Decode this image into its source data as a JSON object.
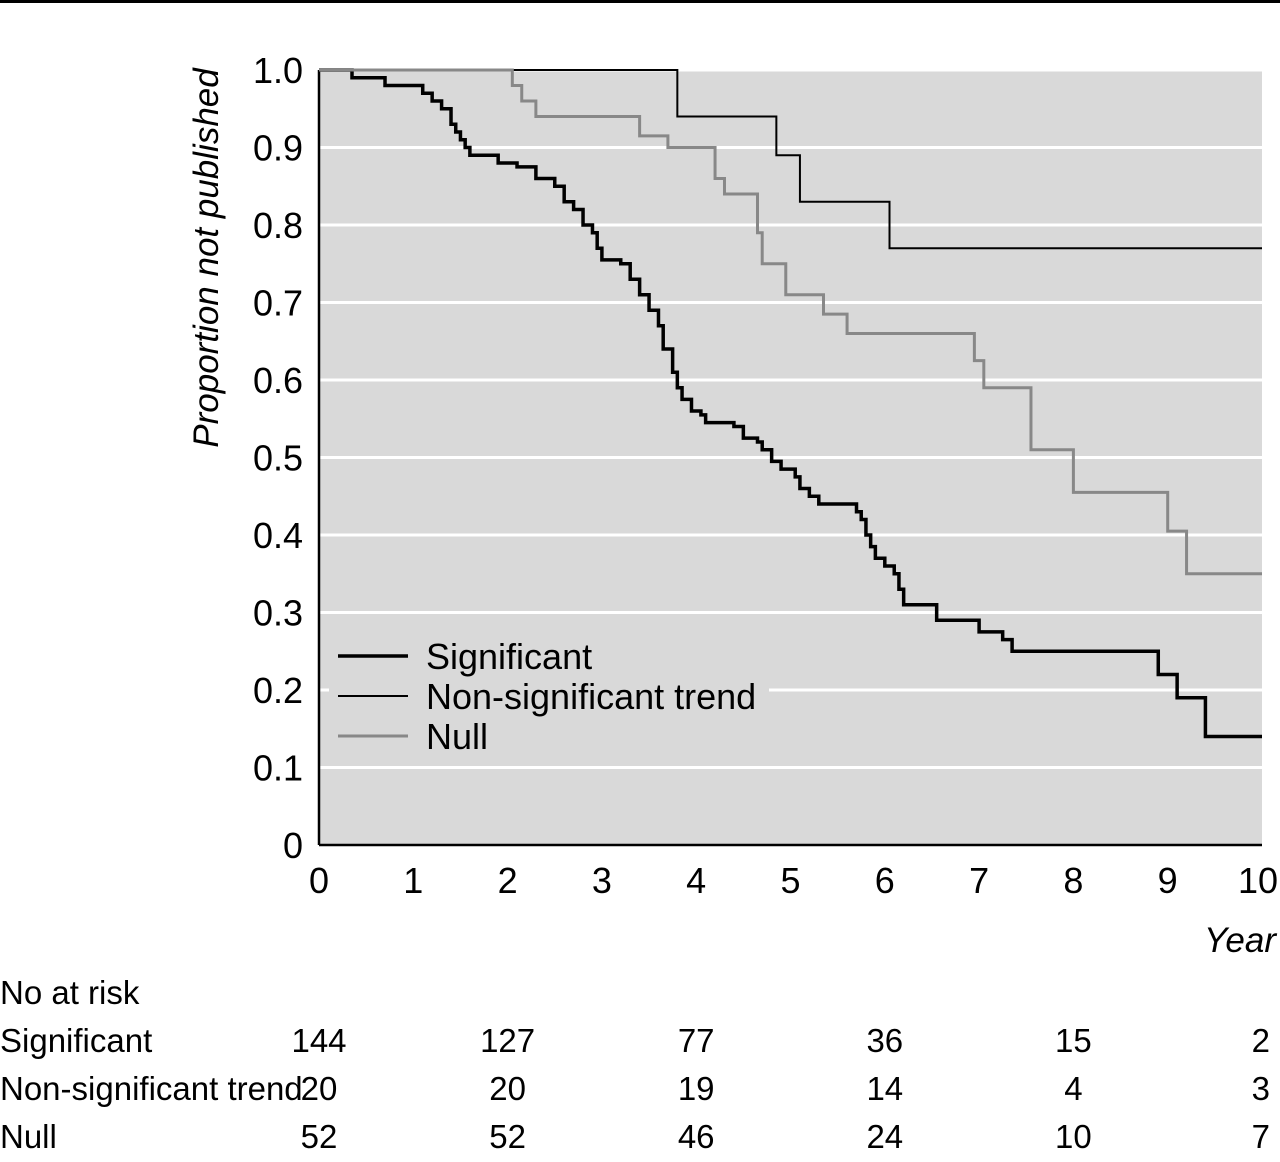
{
  "chart_data": {
    "type": "line",
    "step": true,
    "xlabel": "Year",
    "ylabel": "Proportion not published",
    "xlim": [
      0,
      10
    ],
    "ylim": [
      0,
      1.0
    ],
    "x_ticks": [
      "0",
      "1",
      "2",
      "3",
      "4",
      "5",
      "6",
      "7",
      "8",
      "9",
      "10"
    ],
    "y_ticks": [
      "0",
      "0.1",
      "0.2",
      "0.3",
      "0.4",
      "0.5",
      "0.6",
      "0.7",
      "0.8",
      "0.9",
      "1.0"
    ],
    "grid": true,
    "legend_position": "lower-left",
    "colors": {
      "Significant": "#000000",
      "Non-significant trend": "#000000",
      "Null": "#888888",
      "plot_background": "#d9d9d9"
    },
    "series": [
      {
        "name": "Significant",
        "points": [
          [
            0,
            1.0
          ],
          [
            0.35,
            0.99
          ],
          [
            0.7,
            0.98
          ],
          [
            1.1,
            0.97
          ],
          [
            1.2,
            0.96
          ],
          [
            1.3,
            0.95
          ],
          [
            1.4,
            0.93
          ],
          [
            1.45,
            0.92
          ],
          [
            1.5,
            0.91
          ],
          [
            1.55,
            0.9
          ],
          [
            1.6,
            0.89
          ],
          [
            1.9,
            0.88
          ],
          [
            2.1,
            0.875
          ],
          [
            2.3,
            0.86
          ],
          [
            2.5,
            0.85
          ],
          [
            2.6,
            0.83
          ],
          [
            2.7,
            0.82
          ],
          [
            2.8,
            0.8
          ],
          [
            2.9,
            0.79
          ],
          [
            2.95,
            0.77
          ],
          [
            3.0,
            0.755
          ],
          [
            3.2,
            0.75
          ],
          [
            3.3,
            0.73
          ],
          [
            3.4,
            0.71
          ],
          [
            3.5,
            0.69
          ],
          [
            3.6,
            0.67
          ],
          [
            3.65,
            0.64
          ],
          [
            3.75,
            0.61
          ],
          [
            3.8,
            0.59
          ],
          [
            3.85,
            0.575
          ],
          [
            3.95,
            0.56
          ],
          [
            4.05,
            0.555
          ],
          [
            4.1,
            0.545
          ],
          [
            4.4,
            0.54
          ],
          [
            4.5,
            0.525
          ],
          [
            4.65,
            0.52
          ],
          [
            4.7,
            0.51
          ],
          [
            4.8,
            0.495
          ],
          [
            4.9,
            0.485
          ],
          [
            5.05,
            0.475
          ],
          [
            5.1,
            0.46
          ],
          [
            5.2,
            0.45
          ],
          [
            5.3,
            0.44
          ],
          [
            5.7,
            0.43
          ],
          [
            5.75,
            0.42
          ],
          [
            5.8,
            0.4
          ],
          [
            5.85,
            0.385
          ],
          [
            5.9,
            0.37
          ],
          [
            6.0,
            0.36
          ],
          [
            6.1,
            0.35
          ],
          [
            6.15,
            0.33
          ],
          [
            6.2,
            0.31
          ],
          [
            6.55,
            0.29
          ],
          [
            7.0,
            0.275
          ],
          [
            7.25,
            0.265
          ],
          [
            7.35,
            0.25
          ],
          [
            8.9,
            0.22
          ],
          [
            9.1,
            0.19
          ],
          [
            9.4,
            0.14
          ],
          [
            10.0,
            0.14
          ]
        ]
      },
      {
        "name": "Non-significant trend",
        "points": [
          [
            0,
            1.0
          ],
          [
            3.8,
            0.94
          ],
          [
            4.85,
            0.89
          ],
          [
            5.1,
            0.83
          ],
          [
            6.05,
            0.77
          ],
          [
            10.0,
            0.77
          ]
        ]
      },
      {
        "name": "Null",
        "points": [
          [
            0,
            1.0
          ],
          [
            2.05,
            0.98
          ],
          [
            2.15,
            0.96
          ],
          [
            2.3,
            0.94
          ],
          [
            3.4,
            0.915
          ],
          [
            3.7,
            0.9
          ],
          [
            4.2,
            0.86
          ],
          [
            4.3,
            0.84
          ],
          [
            4.65,
            0.79
          ],
          [
            4.7,
            0.75
          ],
          [
            4.95,
            0.71
          ],
          [
            5.35,
            0.685
          ],
          [
            5.6,
            0.66
          ],
          [
            6.95,
            0.625
          ],
          [
            7.05,
            0.59
          ],
          [
            7.55,
            0.51
          ],
          [
            8.0,
            0.455
          ],
          [
            9.0,
            0.405
          ],
          [
            9.2,
            0.35
          ],
          [
            10.0,
            0.35
          ]
        ]
      }
    ]
  },
  "risk_table": {
    "title": "No at risk",
    "x_positions": [
      0,
      2,
      4,
      6,
      8,
      10
    ],
    "rows": [
      {
        "label": "Significant",
        "values": [
          "144",
          "127",
          "77",
          "36",
          "15",
          "2"
        ]
      },
      {
        "label": "Non-significant trend",
        "values": [
          "20",
          "20",
          "19",
          "14",
          "4",
          "3"
        ]
      },
      {
        "label": "Null",
        "values": [
          "52",
          "52",
          "46",
          "24",
          "10",
          "7"
        ]
      }
    ]
  }
}
